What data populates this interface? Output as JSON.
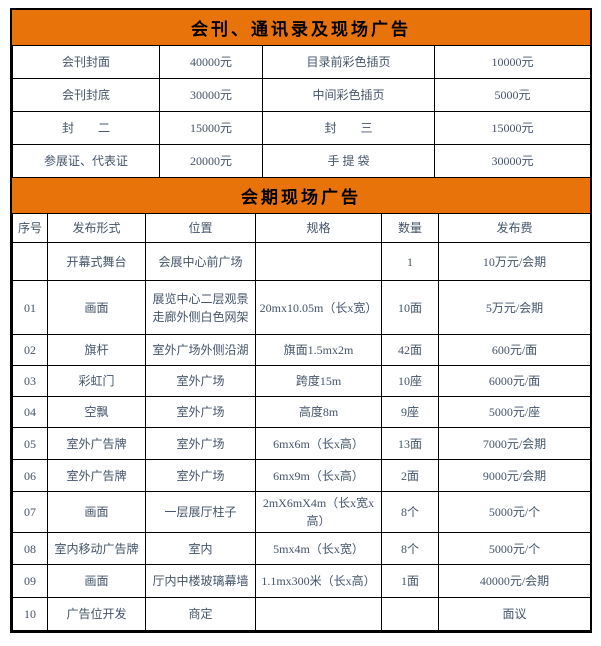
{
  "colors": {
    "header_bg": "#e8730b",
    "header_text": "#000000",
    "body_text": "#44546a",
    "border": "#000000",
    "page_bg": "#ffffff"
  },
  "section1": {
    "title": "会刊、通讯录及现场广告",
    "rows": [
      [
        "会刊封面",
        "40000元",
        "目录前彩色插页",
        "10000元"
      ],
      [
        "会刊封底",
        "30000元",
        "中间彩色插页",
        "5000元"
      ],
      [
        "封　　二",
        "15000元",
        "封　　三",
        "15000元"
      ],
      [
        "参展证、代表证",
        "20000元",
        "手 提 袋",
        "30000元"
      ]
    ]
  },
  "section2": {
    "title": "会期现场广告",
    "headers": [
      "序号",
      "发布形式",
      "位置",
      "规格",
      "数量",
      "发布费"
    ],
    "rows": [
      [
        "",
        "开幕式舞台",
        "会展中心前广场",
        "",
        "1",
        "10万元/会期"
      ],
      [
        "01",
        "画面",
        "展览中心二层观景走廊外侧白色网架",
        "20mx10.05m（长x宽）",
        "10面",
        "5万元/会期"
      ],
      [
        "02",
        "旗杆",
        "室外广场外侧沿湖",
        "旗面1.5mx2m",
        "42面",
        "600元/面"
      ],
      [
        "03",
        "彩虹门",
        "室外广场",
        "跨度15m",
        "10座",
        "6000元/面"
      ],
      [
        "04",
        "空飘",
        "室外广场",
        "高度8m",
        "9座",
        "5000元/座"
      ],
      [
        "05",
        "室外广告牌",
        "室外广场",
        "6mx6m（长x高）",
        "13面",
        "7000元/会期"
      ],
      [
        "06",
        "室外广告牌",
        "室外广场",
        "6mx9m（长x高）",
        "2面",
        "9000元/会期"
      ],
      [
        "07",
        "画面",
        "一层展厅柱子",
        "2mX6mX4m（长x宽x高）",
        "8个",
        "5000元/个"
      ],
      [
        "08",
        "室内移动广告牌",
        "室内",
        "5mx4m（长x宽）",
        "8个",
        "5000元/个"
      ],
      [
        "09",
        "画面",
        "厅内中楼玻璃幕墙",
        "1.1mx300米（长x高）",
        "1面",
        "40000元/会期"
      ],
      [
        "10",
        "广告位开发",
        "商定",
        "",
        "",
        "面议"
      ]
    ]
  }
}
